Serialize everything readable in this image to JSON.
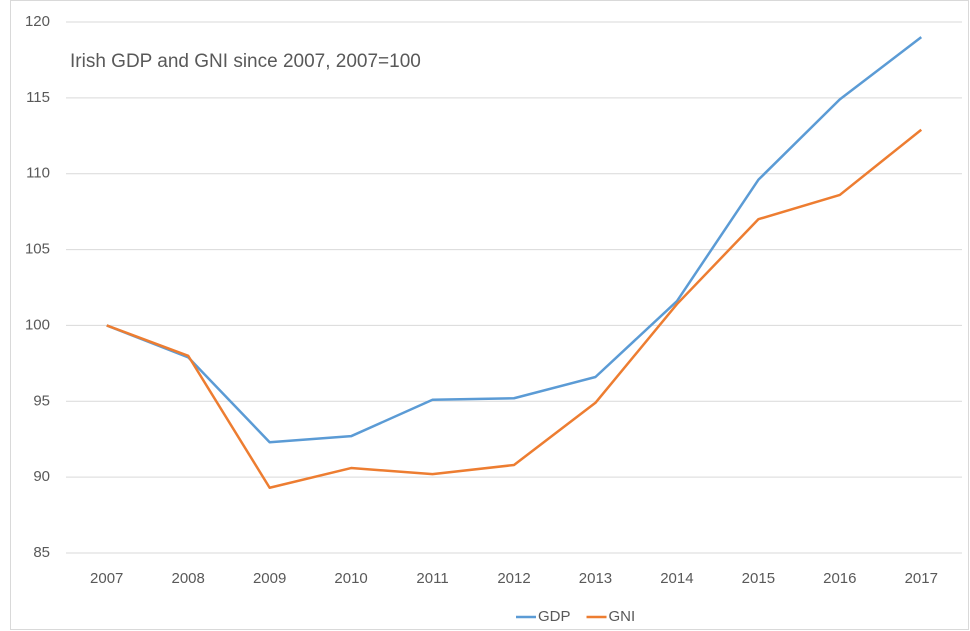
{
  "chart_data": {
    "type": "line",
    "title": "Irish GDP and GNI since 2007, 2007=100",
    "categories": [
      "2007",
      "2008",
      "2009",
      "2010",
      "2011",
      "2012",
      "2013",
      "2014",
      "2015",
      "2016",
      "2017"
    ],
    "series": [
      {
        "name": "GDP",
        "color": "#5b9bd5",
        "values": [
          100,
          97.9,
          92.3,
          92.7,
          95.1,
          95.2,
          96.6,
          101.6,
          109.6,
          114.9,
          119.0
        ]
      },
      {
        "name": "GNI",
        "color": "#ed7d31",
        "values": [
          100,
          98.0,
          89.3,
          90.6,
          90.2,
          90.8,
          94.9,
          101.4,
          107.0,
          108.6,
          112.9
        ]
      }
    ],
    "ylim": [
      85,
      120
    ],
    "yticks": [
      85,
      90,
      95,
      100,
      105,
      110,
      115,
      120
    ],
    "grid": true,
    "legend": "bottom"
  }
}
